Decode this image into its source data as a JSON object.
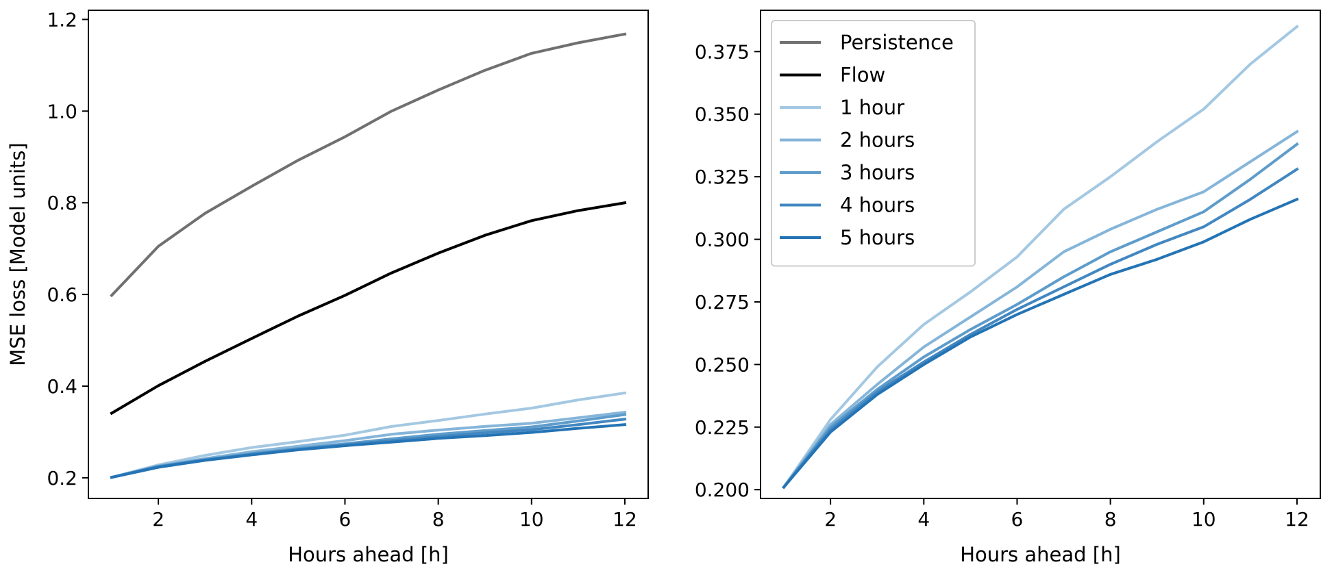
{
  "chart_data": [
    {
      "type": "line",
      "title": "",
      "xlabel": "Hours ahead [h]",
      "ylabel": "MSE loss [Model units]",
      "xlim": [
        0.5,
        12.5
      ],
      "ylim": [
        0.155,
        1.22
      ],
      "xticks": [
        2,
        4,
        6,
        8,
        10,
        12
      ],
      "yticks": [
        0.2,
        0.4,
        0.6,
        0.8,
        1.0,
        1.2
      ],
      "ytick_labels": [
        "0.2",
        "0.4",
        "0.6",
        "0.8",
        "1.0",
        "1.2"
      ],
      "grid": false,
      "x": [
        1,
        2,
        3,
        4,
        5,
        6,
        7,
        8,
        9,
        10,
        11,
        12
      ],
      "series": [
        {
          "name": "Persistence",
          "color": "#707070",
          "values": [
            0.598,
            0.705,
            0.777,
            0.836,
            0.893,
            0.944,
            1.0,
            1.046,
            1.089,
            1.126,
            1.149,
            1.168
          ]
        },
        {
          "name": "Flow",
          "color": "#000000",
          "values": [
            0.341,
            0.401,
            0.454,
            0.504,
            0.553,
            0.598,
            0.647,
            0.69,
            0.729,
            0.761,
            0.783,
            0.8
          ]
        },
        {
          "name": "1 hour",
          "color": "#a4c8e2",
          "values": [
            0.201,
            0.228,
            0.249,
            0.266,
            0.279,
            0.293,
            0.312,
            0.325,
            0.339,
            0.352,
            0.37,
            0.385
          ]
        },
        {
          "name": "2 hours",
          "color": "#85b5d9",
          "values": [
            0.201,
            0.226,
            0.242,
            0.257,
            0.269,
            0.281,
            0.295,
            0.304,
            0.312,
            0.319,
            0.331,
            0.343
          ]
        },
        {
          "name": "3 hours",
          "color": "#5e9ccb",
          "values": [
            0.201,
            0.225,
            0.24,
            0.253,
            0.264,
            0.274,
            0.285,
            0.295,
            0.303,
            0.311,
            0.324,
            0.338
          ]
        },
        {
          "name": "4 hours",
          "color": "#4287c1",
          "values": [
            0.201,
            0.224,
            0.239,
            0.251,
            0.262,
            0.272,
            0.281,
            0.29,
            0.298,
            0.305,
            0.316,
            0.328
          ]
        },
        {
          "name": "5 hours",
          "color": "#2474b5",
          "values": [
            0.201,
            0.223,
            0.238,
            0.25,
            0.261,
            0.27,
            0.278,
            0.286,
            0.292,
            0.299,
            0.308,
            0.316
          ]
        }
      ]
    },
    {
      "type": "line",
      "title": "",
      "xlabel": "Hours ahead [h]",
      "ylabel": "",
      "xlim": [
        0.5,
        12.5
      ],
      "ylim": [
        0.1965,
        0.3915
      ],
      "xticks": [
        2,
        4,
        6,
        8,
        10,
        12
      ],
      "yticks": [
        0.2,
        0.225,
        0.25,
        0.275,
        0.3,
        0.325,
        0.35,
        0.375
      ],
      "ytick_labels": [
        "0.200",
        "0.225",
        "0.250",
        "0.275",
        "0.300",
        "0.325",
        "0.350",
        "0.375"
      ],
      "grid": false,
      "legend": "top-left",
      "x": [
        1,
        2,
        3,
        4,
        5,
        6,
        7,
        8,
        9,
        10,
        11,
        12
      ],
      "series": [
        {
          "name": "1 hour",
          "color": "#a4c8e2",
          "values": [
            0.201,
            0.228,
            0.249,
            0.266,
            0.279,
            0.293,
            0.312,
            0.325,
            0.339,
            0.352,
            0.37,
            0.385
          ]
        },
        {
          "name": "2 hours",
          "color": "#85b5d9",
          "values": [
            0.201,
            0.226,
            0.242,
            0.257,
            0.269,
            0.281,
            0.295,
            0.304,
            0.312,
            0.319,
            0.331,
            0.343
          ]
        },
        {
          "name": "3 hours",
          "color": "#5e9ccb",
          "values": [
            0.201,
            0.225,
            0.24,
            0.253,
            0.264,
            0.274,
            0.285,
            0.295,
            0.303,
            0.311,
            0.324,
            0.338
          ]
        },
        {
          "name": "4 hours",
          "color": "#4287c1",
          "values": [
            0.201,
            0.224,
            0.239,
            0.251,
            0.262,
            0.272,
            0.281,
            0.29,
            0.298,
            0.305,
            0.316,
            0.328
          ]
        },
        {
          "name": "5 hours",
          "color": "#2474b5",
          "values": [
            0.201,
            0.223,
            0.238,
            0.25,
            0.261,
            0.27,
            0.278,
            0.286,
            0.292,
            0.299,
            0.308,
            0.316
          ]
        }
      ],
      "legend_entries": [
        {
          "label": "Persistence",
          "color": "#707070"
        },
        {
          "label": "Flow",
          "color": "#000000"
        },
        {
          "label": "1 hour",
          "color": "#a4c8e2"
        },
        {
          "label": "2 hours",
          "color": "#85b5d9"
        },
        {
          "label": "3 hours",
          "color": "#5e9ccb"
        },
        {
          "label": "4 hours",
          "color": "#4287c1"
        },
        {
          "label": "5 hours",
          "color": "#2474b5"
        }
      ]
    }
  ]
}
